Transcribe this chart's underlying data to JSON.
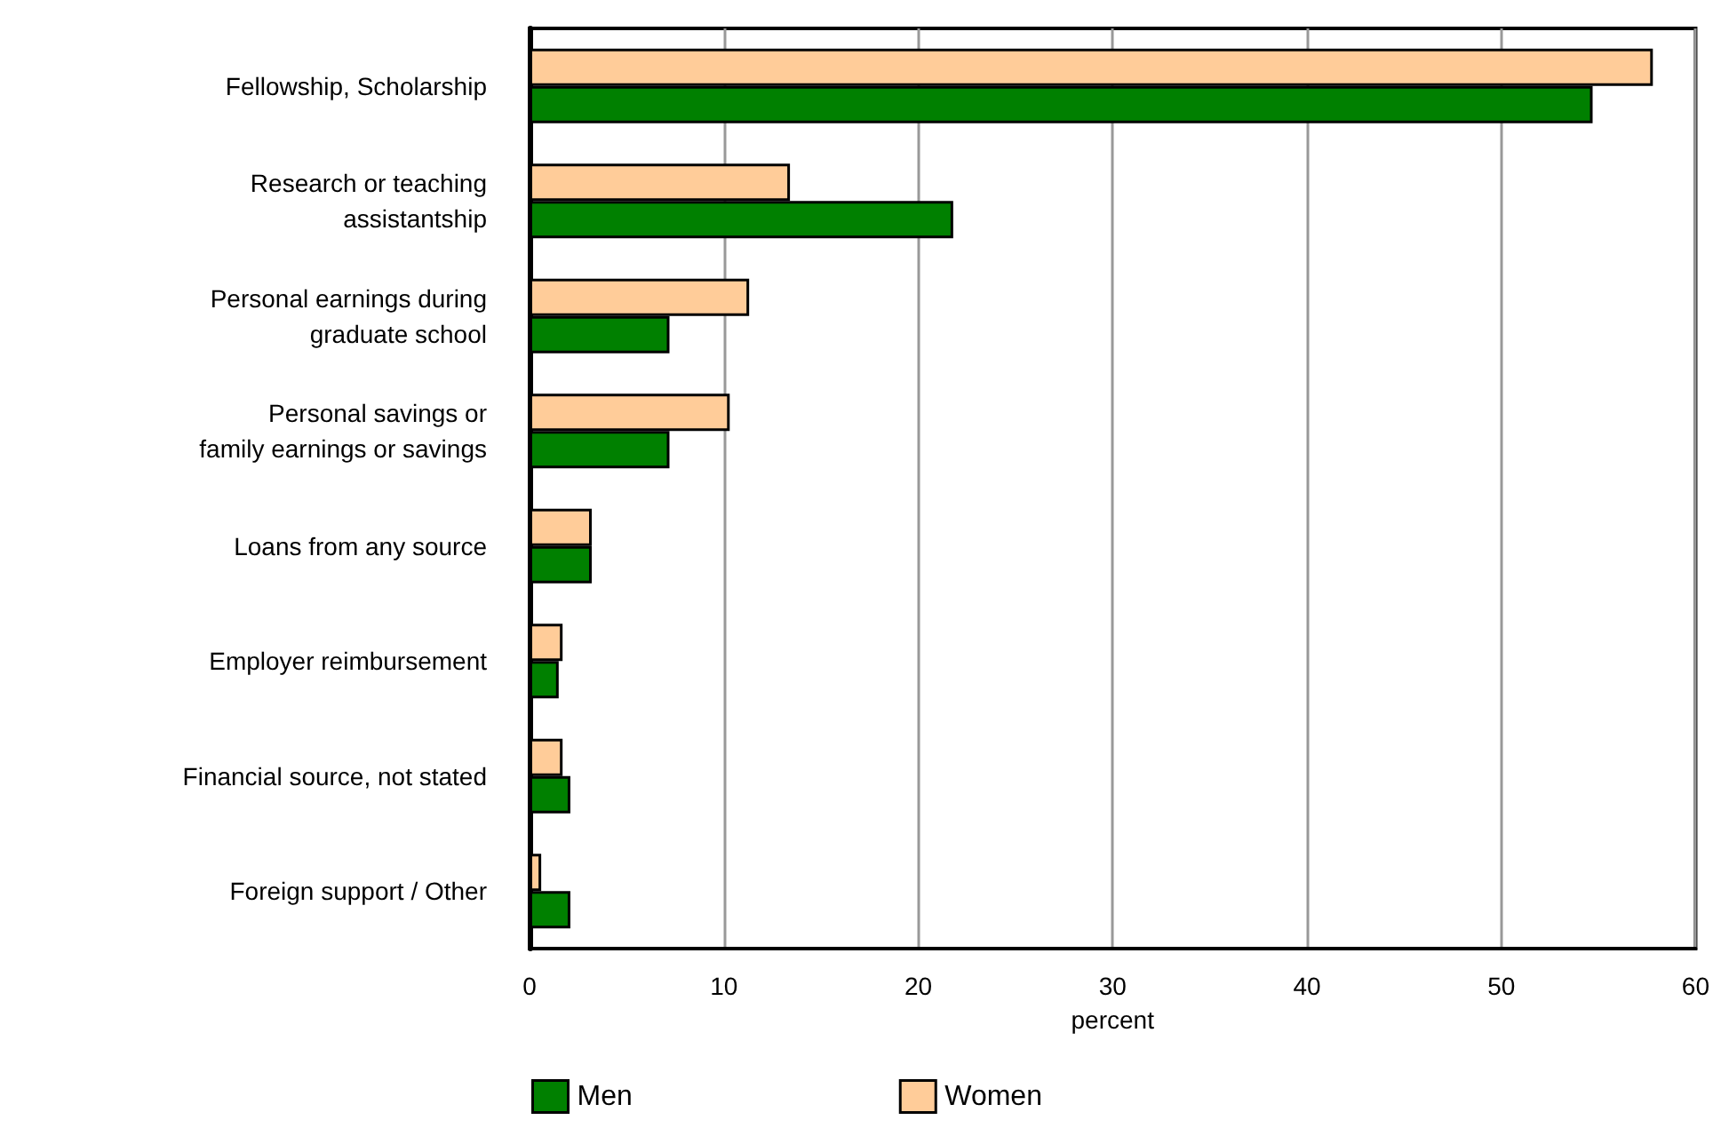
{
  "chart_data": {
    "type": "bar",
    "orientation": "horizontal",
    "categories": [
      "Fellowship, Scholarship",
      "Research or teaching\nassistantship",
      "Personal earnings during\ngraduate school",
      "Personal savings or\nfamily earnings or savings",
      "Loans from any source",
      "Employer reimbursement",
      "Financial source, not stated",
      "Foreign support / Other"
    ],
    "series": [
      {
        "name": "Men",
        "color": "#008000",
        "values": [
          54.7,
          21.8,
          7.2,
          7.2,
          3.2,
          1.5,
          2.1,
          2.1
        ]
      },
      {
        "name": "Women",
        "color": "#ffcc99",
        "values": [
          57.8,
          13.4,
          11.3,
          10.3,
          3.2,
          1.7,
          1.7,
          0.6
        ]
      }
    ],
    "xlabel": "percent",
    "xlim": [
      0,
      60
    ],
    "xticks": [
      0,
      10,
      20,
      30,
      40,
      50,
      60
    ],
    "grid": "x",
    "legend": "bottom"
  }
}
